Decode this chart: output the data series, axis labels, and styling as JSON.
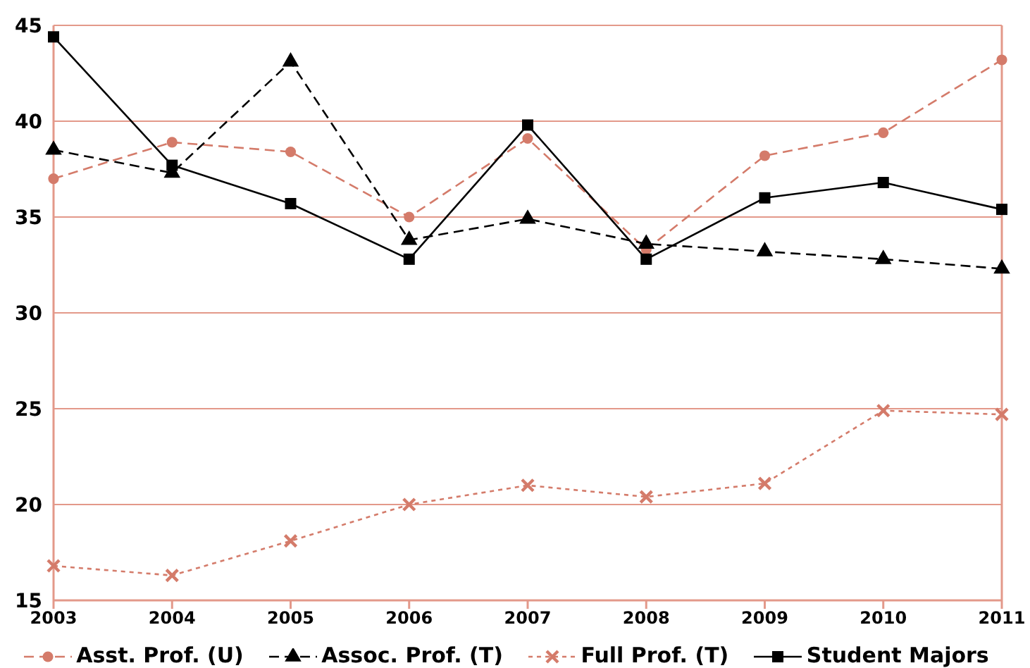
{
  "chart_data": {
    "type": "line",
    "categories": [
      "2003",
      "2004",
      "2005",
      "2006",
      "2007",
      "2008",
      "2009",
      "2010",
      "2011"
    ],
    "series": [
      {
        "name": "Asst. Prof. (U)",
        "color": "#d47b6a",
        "marker": "circle",
        "line_style": "dashed",
        "values": [
          37.0,
          38.9,
          38.4,
          35.0,
          39.1,
          33.3,
          38.2,
          39.4,
          43.2
        ]
      },
      {
        "name": "Assoc. Prof. (T)",
        "color": "#000000",
        "marker": "triangle",
        "line_style": "dashed",
        "values": [
          38.5,
          37.3,
          43.1,
          33.8,
          34.9,
          33.6,
          33.2,
          32.8,
          32.3
        ]
      },
      {
        "name": "Full Prof. (T)",
        "color": "#d47b6a",
        "marker": "cross",
        "line_style": "dotted",
        "values": [
          16.8,
          16.3,
          18.1,
          20.0,
          21.0,
          20.4,
          21.1,
          24.9,
          24.7
        ]
      },
      {
        "name": "Student Majors",
        "color": "#000000",
        "marker": "square",
        "line_style": "solid",
        "values": [
          44.4,
          37.7,
          35.7,
          32.8,
          39.8,
          32.8,
          36.0,
          36.8,
          35.4
        ]
      }
    ],
    "ylim": [
      15,
      45
    ],
    "yticks": [
      15,
      20,
      25,
      30,
      35,
      40,
      45
    ],
    "grid": "y",
    "legend": "bottom"
  }
}
